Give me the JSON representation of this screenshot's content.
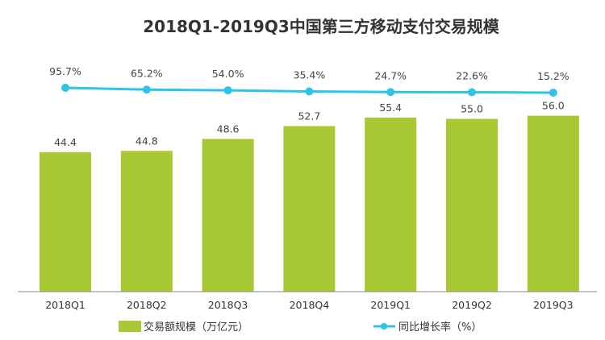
{
  "chart_data": {
    "type": "bar+line",
    "title": "2018Q1-2019Q3中国第三方移动支付交易规模",
    "categories": [
      "2018Q1",
      "2018Q2",
      "2018Q3",
      "2018Q4",
      "2019Q1",
      "2019Q2",
      "2019Q3"
    ],
    "series": [
      {
        "name": "交易额规模（万亿元）",
        "type": "bar",
        "color": "#a8c933",
        "values": [
          44.4,
          44.8,
          48.6,
          52.7,
          55.4,
          55.0,
          56.0
        ],
        "labels": [
          "44.4",
          "44.8",
          "48.6",
          "52.7",
          "55.4",
          "55.0",
          "56.0"
        ]
      },
      {
        "name": "同比增长率（%）",
        "type": "line",
        "color": "#2ec4e6",
        "values": [
          95.7,
          65.2,
          54.0,
          35.4,
          24.7,
          22.6,
          15.2
        ],
        "labels": [
          "95.7%",
          "65.2%",
          "54.0%",
          "35.4%",
          "24.7%",
          "22.6%",
          "15.2%"
        ]
      }
    ],
    "grid": false,
    "legend_position": "bottom"
  }
}
